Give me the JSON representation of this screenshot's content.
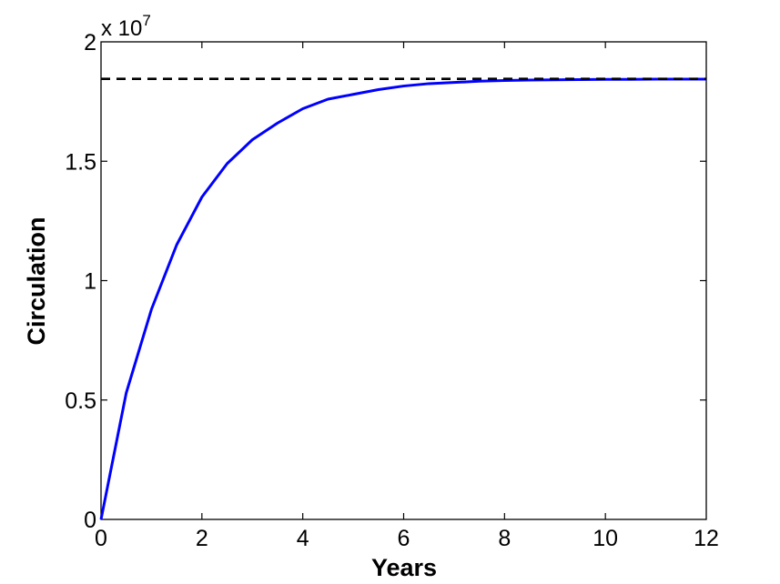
{
  "chart_data": {
    "type": "line",
    "title": "",
    "xlabel": "Years",
    "ylabel": "Circulation",
    "y_exponent_base": "x 10",
    "y_exponent_power": "7",
    "xlim": [
      0,
      12
    ],
    "ylim": [
      0,
      2
    ],
    "x_ticks": [
      0,
      2,
      4,
      6,
      8,
      10,
      12
    ],
    "x_tick_labels": [
      "0",
      "2",
      "4",
      "6",
      "8",
      "10",
      "12"
    ],
    "y_ticks": [
      0,
      0.5,
      1,
      1.5,
      2
    ],
    "y_tick_labels": [
      "0",
      "0.5",
      "1",
      "1.5",
      "2"
    ],
    "grid": false,
    "legend": "none",
    "series": [
      {
        "style": "solid",
        "color": "#0000ff",
        "x": [
          0,
          0.5,
          1,
          1.5,
          2,
          2.5,
          3,
          3.5,
          4,
          4.5,
          5,
          5.5,
          6,
          6.5,
          7,
          7.5,
          8,
          8.5,
          9,
          9.5,
          10,
          10.5,
          11,
          11.5,
          12
        ],
        "y": [
          0,
          0.53,
          0.88,
          1.15,
          1.35,
          1.49,
          1.59,
          1.66,
          1.72,
          1.76,
          1.78,
          1.8,
          1.815,
          1.825,
          1.83,
          1.835,
          1.838,
          1.84,
          1.841,
          1.842,
          1.843,
          1.843,
          1.844,
          1.844,
          1.844
        ]
      },
      {
        "style": "dashed",
        "color": "#000000",
        "x": [
          0,
          12
        ],
        "y": [
          1.845,
          1.845
        ]
      }
    ]
  }
}
